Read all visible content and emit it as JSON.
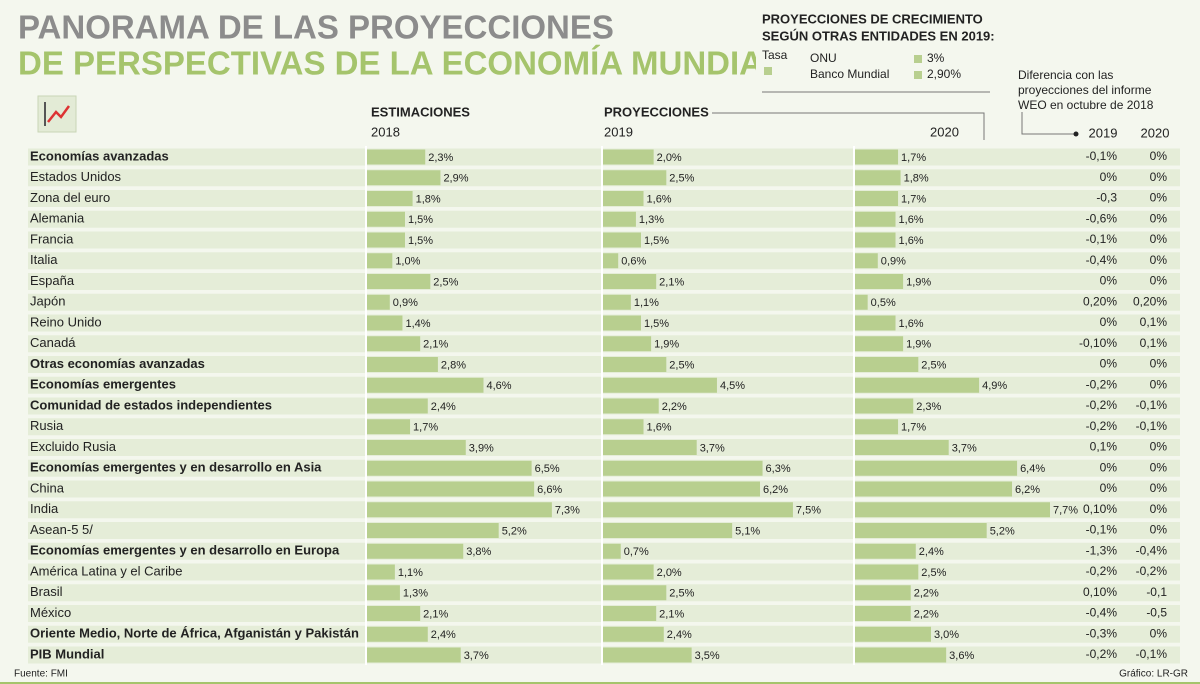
{
  "chart_data": {
    "type": "bar",
    "title": "PANORAMA DE LAS PROYECCIONES",
    "subtitle": "DE PERSPECTIVAS DE LA ECONOMÍA MUNDIAL",
    "group_labels": [
      "ESTIMACIONES",
      "PROYECCIONES"
    ],
    "categories": [
      "Economías avanzadas",
      "Estados Unidos",
      "Zona del euro",
      "Alemania",
      "Francia",
      "Italia",
      "España",
      "Japón",
      "Reino Unido",
      "Canadá",
      "Otras economías avanzadas",
      "Economías emergentes",
      "Comunidad de estados independientes",
      "Rusia",
      "Excluido Rusia",
      "Economías emergentes y en desarrollo en Asia",
      "China",
      "India",
      "Asean-5 5/",
      "Economías emergentes y en desarrollo en Europa",
      "América Latina y el Caribe",
      "Brasil",
      "México",
      "Oriente Medio, Norte de África, Afganistán y Pakistán",
      "PIB Mundial"
    ],
    "bold": [
      true,
      false,
      false,
      false,
      false,
      false,
      false,
      false,
      false,
      false,
      true,
      true,
      true,
      false,
      false,
      true,
      false,
      false,
      false,
      true,
      false,
      false,
      false,
      true,
      true
    ],
    "series": [
      {
        "name": "2018",
        "color": "#b8cf8f",
        "values": [
          2.3,
          2.9,
          1.8,
          1.5,
          1.5,
          1.0,
          2.5,
          0.9,
          1.4,
          2.1,
          2.8,
          4.6,
          2.4,
          1.7,
          3.9,
          6.5,
          6.6,
          7.3,
          5.2,
          3.8,
          1.1,
          1.3,
          2.1,
          2.4,
          3.7
        ],
        "value_labels": [
          "2,3%",
          "2,9%",
          "1,8%",
          "1,5%",
          "1,5%",
          "1,0%",
          "2,5%",
          "0,9%",
          "1,4%",
          "2,1%",
          "2,8%",
          "4,6%",
          "2,4%",
          "1,7%",
          "3,9%",
          "6,5%",
          "6,6%",
          "7,3%",
          "5,2%",
          "3,8%",
          "1,1%",
          "1,3%",
          "2,1%",
          "2,4%",
          "3,7%"
        ]
      },
      {
        "name": "2019",
        "color": "#b8cf8f",
        "values": [
          2.0,
          2.5,
          1.6,
          1.3,
          1.5,
          0.6,
          2.1,
          1.1,
          1.5,
          1.9,
          2.5,
          4.5,
          2.2,
          1.6,
          3.7,
          6.3,
          6.2,
          7.5,
          5.1,
          0.7,
          2.0,
          2.5,
          2.1,
          2.4,
          3.5
        ],
        "value_labels": [
          "2,0%",
          "2,5%",
          "1,6%",
          "1,3%",
          "1,5%",
          "0,6%",
          "2,1%",
          "1,1%",
          "1,5%",
          "1,9%",
          "2,5%",
          "4,5%",
          "2,2%",
          "1,6%",
          "3,7%",
          "6,3%",
          "6,2%",
          "7,5%",
          "5,1%",
          "0,7%",
          "2,0%",
          "2,5%",
          "2,1%",
          "2,4%",
          "3,5%"
        ]
      },
      {
        "name": "2020",
        "color": "#b8cf8f",
        "values": [
          1.7,
          1.8,
          1.7,
          1.6,
          1.6,
          0.9,
          1.9,
          0.5,
          1.6,
          1.9,
          2.5,
          4.9,
          2.3,
          1.7,
          3.7,
          6.4,
          6.2,
          7.7,
          5.2,
          2.4,
          2.5,
          2.2,
          2.2,
          3.0,
          3.6
        ],
        "value_labels": [
          "1,7%",
          "1,8%",
          "1,7%",
          "1,6%",
          "1,6%",
          "0,9%",
          "1,9%",
          "0,5%",
          "1,6%",
          "1,9%",
          "2,5%",
          "4,9%",
          "2,3%",
          "1,7%",
          "3,7%",
          "6,4%",
          "6,2%",
          "7,7%",
          "5,2%",
          "2,4%",
          "2,5%",
          "2,2%",
          "2,2%",
          "3,0%",
          "3,6%"
        ]
      }
    ],
    "differences": {
      "title": [
        "Diferencia con las",
        "proyecciones del informe",
        "WEO en octubre de 2018"
      ],
      "columns": [
        "2019",
        "2020"
      ],
      "rows": [
        [
          "-0,1%",
          "0%"
        ],
        [
          "0%",
          "0%"
        ],
        [
          "-0,3",
          "0%"
        ],
        [
          "-0,6%",
          "0%"
        ],
        [
          "-0,1%",
          "0%"
        ],
        [
          "-0,4%",
          "0%"
        ],
        [
          "0%",
          "0%"
        ],
        [
          "0,20%",
          "0,20%"
        ],
        [
          "0%",
          "0,1%"
        ],
        [
          "-0,10%",
          "0,1%"
        ],
        [
          "0%",
          "0%"
        ],
        [
          "-0,2%",
          "0%"
        ],
        [
          "-0,2%",
          "-0,1%"
        ],
        [
          "-0,2%",
          "-0,1%"
        ],
        [
          "0,1%",
          "0%"
        ],
        [
          "0%",
          "0%"
        ],
        [
          "0%",
          "0%"
        ],
        [
          "0,10%",
          "0%"
        ],
        [
          "-0,1%",
          "0%"
        ],
        [
          "-1,3%",
          "-0,4%"
        ],
        [
          "-0,2%",
          "-0,2%"
        ],
        [
          "0,10%",
          "-0,1"
        ],
        [
          "-0,4%",
          "-0,5"
        ],
        [
          "-0,3%",
          "0%"
        ],
        [
          "-0,2%",
          "-0,1%"
        ]
      ]
    },
    "side_note": {
      "title": [
        "PROYECCIONES DE CRECIMIENTO",
        "SEGÚN OTRAS ENTIDADES EN 2019:"
      ],
      "legend_label": "Tasa",
      "entries": [
        {
          "name": "ONU",
          "value": "3%"
        },
        {
          "name": "Banco Mundial",
          "value": "2,90%"
        }
      ]
    },
    "source": "Fuente: FMI",
    "credit": "Gráfico: LR-GR"
  }
}
